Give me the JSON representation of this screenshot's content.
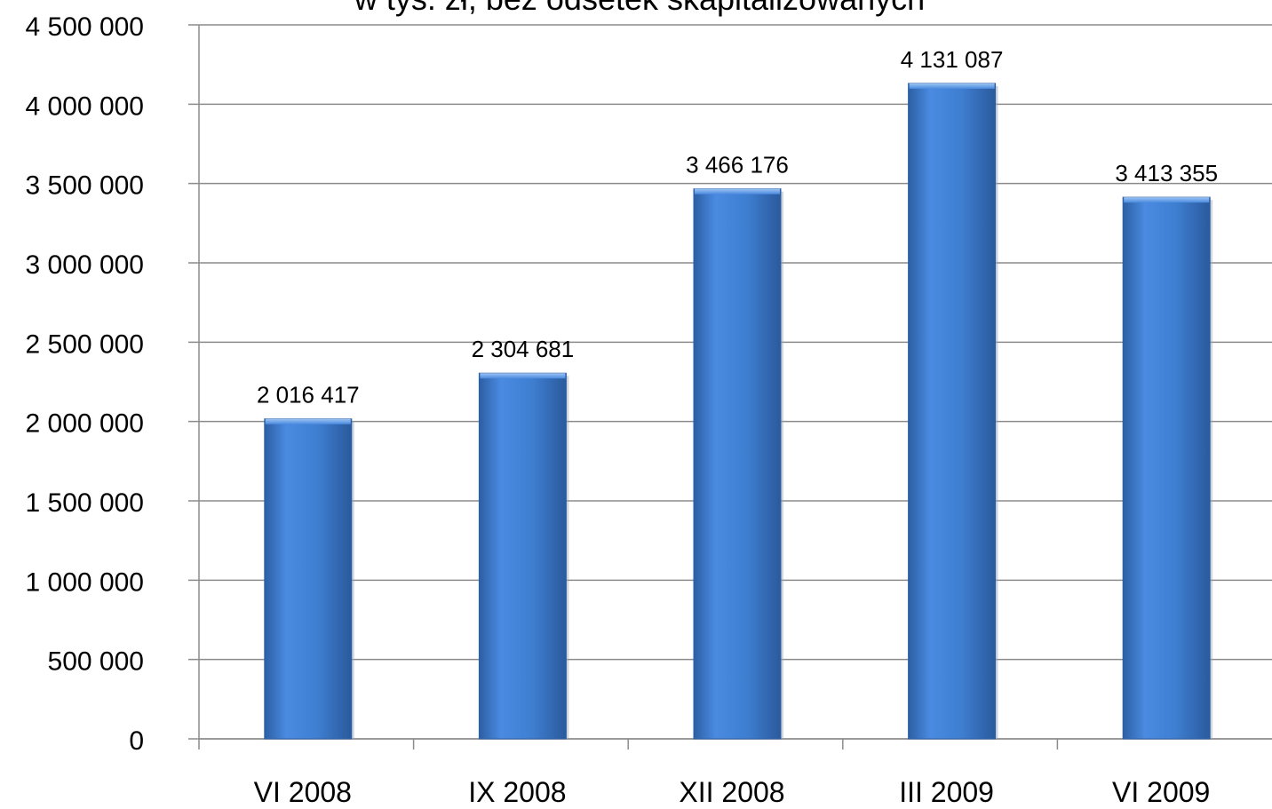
{
  "chart_data": {
    "type": "bar",
    "title": "w tys. zł, bez odsetek skapitalizowanych",
    "categories": [
      "VI 2008",
      "IX 2008",
      "XII 2008",
      "III 2009",
      "VI 2009"
    ],
    "values": [
      2016417,
      2304681,
      3466176,
      4131087,
      3413355
    ],
    "value_labels": [
      "2 016 417",
      "2 304 681",
      "3 466 176",
      "4 131 087",
      "3 413 355"
    ],
    "ylim": [
      0,
      4500000
    ],
    "ytick_values": [
      0,
      500000,
      1000000,
      1500000,
      2000000,
      2500000,
      3000000,
      3500000,
      4000000,
      4500000
    ],
    "ytick_labels": [
      "0",
      "500 000",
      "1 000 000",
      "1 500 000",
      "2 000 000",
      "2 500 000",
      "3 000 000",
      "3 500 000",
      "4 000 000",
      "4 500 000"
    ],
    "xlabel": "",
    "ylabel": "",
    "grid": true,
    "legend": "none",
    "colors": {
      "bar": "#3f7fd2",
      "bar_edge": "#2d5fa6",
      "grid": "#8c8c8c",
      "axis": "#8c8c8c"
    }
  }
}
